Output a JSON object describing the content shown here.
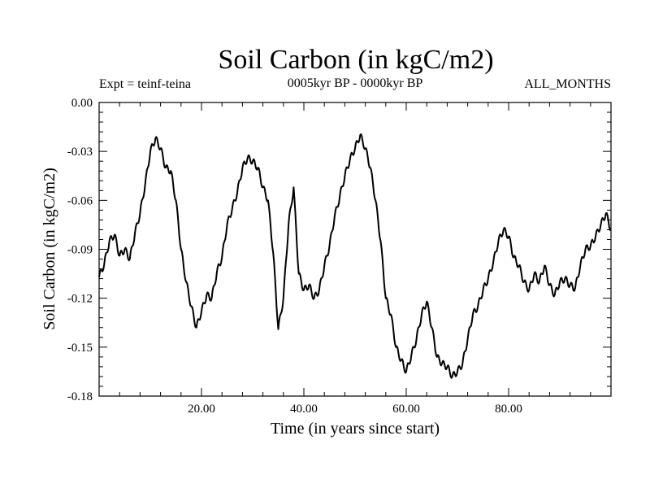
{
  "chart_data": {
    "type": "line",
    "title": "Soil Carbon (in kgC/m2)",
    "subtitle_left": "Expt = teinf-teina",
    "subtitle_center": "0005kyr BP - 0000kyr BP",
    "subtitle_right": "ALL_MONTHS",
    "xlabel": "Time (in years since start)",
    "ylabel": "Soil Carbon (in kgC/m2)",
    "xlim": [
      0,
      100
    ],
    "ylim": [
      -0.18,
      0.0
    ],
    "x_ticks": [
      20,
      40,
      60,
      80
    ],
    "x_tick_labels": [
      "20.00",
      "40.00",
      "60.00",
      "80.00"
    ],
    "y_ticks": [
      0.0,
      -0.03,
      -0.06,
      -0.09,
      -0.12,
      -0.15,
      -0.18
    ],
    "y_tick_labels": [
      "0.00",
      "-0.03",
      "-0.06",
      "-0.09",
      "-0.12",
      "-0.15",
      "-0.18"
    ],
    "series": [
      {
        "name": "Soil Carbon",
        "color": "#000000",
        "x": [
          0,
          1,
          2,
          3,
          4,
          5,
          6,
          7,
          8,
          9,
          10,
          11,
          12,
          13,
          14,
          15,
          16,
          17,
          18,
          19,
          20,
          21,
          22,
          23,
          24,
          25,
          26,
          27,
          28,
          29,
          30,
          31,
          32,
          33,
          34,
          35,
          36,
          37,
          38,
          39,
          40,
          41,
          42,
          43,
          44,
          45,
          46,
          47,
          48,
          49,
          50,
          51,
          52,
          53,
          54,
          55,
          56,
          57,
          58,
          59,
          60,
          61,
          62,
          63,
          64,
          65,
          66,
          67,
          68,
          69,
          70,
          71,
          72,
          73,
          74,
          75,
          76,
          77,
          78,
          79,
          80,
          81,
          82,
          83,
          84,
          85,
          86,
          87,
          88,
          89,
          90,
          91,
          92,
          93,
          94,
          95,
          96,
          97,
          98,
          99,
          100
        ],
        "y": [
          -0.107,
          -0.099,
          -0.085,
          -0.081,
          -0.094,
          -0.09,
          -0.096,
          -0.08,
          -0.068,
          -0.05,
          -0.03,
          -0.022,
          -0.028,
          -0.04,
          -0.042,
          -0.06,
          -0.09,
          -0.11,
          -0.125,
          -0.138,
          -0.128,
          -0.118,
          -0.12,
          -0.104,
          -0.095,
          -0.075,
          -0.065,
          -0.055,
          -0.04,
          -0.034,
          -0.036,
          -0.04,
          -0.052,
          -0.06,
          -0.092,
          -0.139,
          -0.12,
          -0.075,
          -0.052,
          -0.105,
          -0.115,
          -0.112,
          -0.12,
          -0.115,
          -0.1,
          -0.088,
          -0.07,
          -0.058,
          -0.045,
          -0.035,
          -0.028,
          -0.02,
          -0.028,
          -0.04,
          -0.06,
          -0.085,
          -0.12,
          -0.13,
          -0.15,
          -0.158,
          -0.165,
          -0.155,
          -0.145,
          -0.13,
          -0.122,
          -0.138,
          -0.156,
          -0.16,
          -0.162,
          -0.168,
          -0.165,
          -0.16,
          -0.145,
          -0.13,
          -0.125,
          -0.115,
          -0.108,
          -0.098,
          -0.085,
          -0.078,
          -0.082,
          -0.095,
          -0.1,
          -0.11,
          -0.115,
          -0.105,
          -0.11,
          -0.1,
          -0.112,
          -0.118,
          -0.11,
          -0.108,
          -0.112,
          -0.114,
          -0.1,
          -0.09,
          -0.088,
          -0.082,
          -0.075,
          -0.068,
          -0.078
        ]
      }
    ]
  }
}
